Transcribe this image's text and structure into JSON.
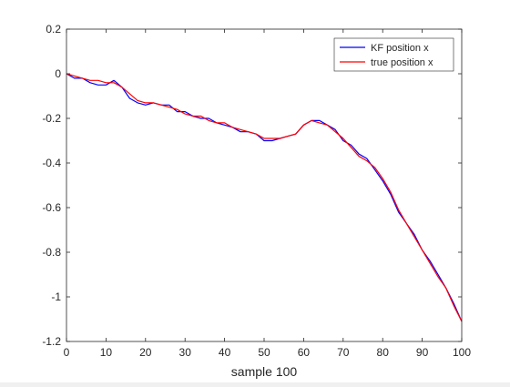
{
  "chart_data": {
    "type": "line",
    "title": "",
    "xlabel": "sample 100",
    "ylabel": "",
    "xlim": [
      0,
      100
    ],
    "ylim": [
      -1.2,
      0.2
    ],
    "xticks": [
      0,
      10,
      20,
      30,
      40,
      50,
      60,
      70,
      80,
      90,
      100
    ],
    "xtick_labels": [
      "0",
      "10",
      "20",
      "30",
      "40",
      "50",
      "60",
      "70",
      "80",
      "90",
      "100"
    ],
    "yticks": [
      0.2,
      0,
      -0.2,
      -0.4,
      -0.6,
      -0.8,
      -1,
      -1.2
    ],
    "ytick_labels": [
      "0.2",
      "0",
      "-0.2",
      "-0.4",
      "-0.6",
      "-0.8",
      "-1",
      "-1.2"
    ],
    "grid": false,
    "legend_position": "top-right",
    "series": [
      {
        "name": "KF position x",
        "color": "#0000ff",
        "x": [
          0,
          2,
          4,
          6,
          8,
          10,
          12,
          14,
          16,
          18,
          20,
          22,
          24,
          26,
          28,
          30,
          32,
          34,
          36,
          38,
          40,
          42,
          44,
          46,
          48,
          50,
          52,
          54,
          56,
          58,
          60,
          62,
          64,
          66,
          68,
          70,
          72,
          74,
          76,
          78,
          80,
          82,
          84,
          86,
          88,
          90,
          92,
          94,
          96,
          98,
          100
        ],
        "values": [
          0.0,
          -0.02,
          -0.02,
          -0.04,
          -0.05,
          -0.05,
          -0.03,
          -0.06,
          -0.11,
          -0.13,
          -0.14,
          -0.13,
          -0.14,
          -0.14,
          -0.17,
          -0.17,
          -0.19,
          -0.2,
          -0.2,
          -0.22,
          -0.23,
          -0.24,
          -0.26,
          -0.26,
          -0.27,
          -0.3,
          -0.3,
          -0.29,
          -0.28,
          -0.27,
          -0.23,
          -0.21,
          -0.21,
          -0.23,
          -0.25,
          -0.3,
          -0.32,
          -0.36,
          -0.38,
          -0.43,
          -0.48,
          -0.54,
          -0.62,
          -0.67,
          -0.72,
          -0.79,
          -0.84,
          -0.9,
          -0.96,
          -1.03,
          -1.11
        ]
      },
      {
        "name": "true position x",
        "color": "#ff0000",
        "x": [
          0,
          2,
          4,
          6,
          8,
          10,
          12,
          14,
          16,
          18,
          20,
          22,
          24,
          26,
          28,
          30,
          32,
          34,
          36,
          38,
          40,
          42,
          44,
          46,
          48,
          50,
          52,
          54,
          56,
          58,
          60,
          62,
          64,
          66,
          68,
          70,
          72,
          74,
          76,
          78,
          80,
          82,
          84,
          86,
          88,
          90,
          92,
          94,
          96,
          98,
          100
        ],
        "values": [
          0.0,
          -0.01,
          -0.02,
          -0.03,
          -0.03,
          -0.04,
          -0.04,
          -0.06,
          -0.09,
          -0.12,
          -0.13,
          -0.13,
          -0.14,
          -0.15,
          -0.16,
          -0.18,
          -0.19,
          -0.19,
          -0.21,
          -0.22,
          -0.22,
          -0.24,
          -0.25,
          -0.26,
          -0.27,
          -0.29,
          -0.29,
          -0.29,
          -0.28,
          -0.27,
          -0.23,
          -0.21,
          -0.22,
          -0.23,
          -0.26,
          -0.29,
          -0.33,
          -0.37,
          -0.39,
          -0.42,
          -0.47,
          -0.53,
          -0.61,
          -0.67,
          -0.73,
          -0.79,
          -0.85,
          -0.91,
          -0.96,
          -1.04,
          -1.11
        ]
      }
    ]
  }
}
